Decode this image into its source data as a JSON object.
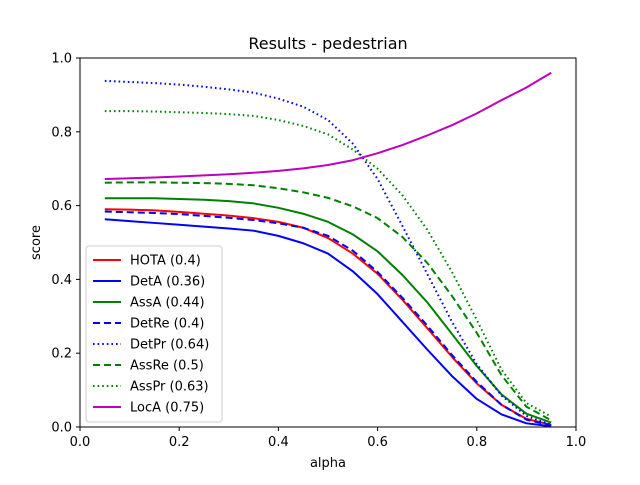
{
  "chart_data": {
    "type": "line",
    "title": "Results - pedestrian",
    "xlabel": "alpha",
    "ylabel": "score",
    "xlim": [
      0.0,
      1.0
    ],
    "ylim": [
      0.0,
      1.0
    ],
    "xticks": [
      "0.0",
      "0.2",
      "0.4",
      "0.6",
      "0.8",
      "1.0"
    ],
    "yticks": [
      "0.0",
      "0.2",
      "0.4",
      "0.6",
      "0.8",
      "1.0"
    ],
    "grid": false,
    "legend_position": "lower-left",
    "x": [
      0.05,
      0.1,
      0.15,
      0.2,
      0.25,
      0.3,
      0.35,
      0.4,
      0.45,
      0.5,
      0.55,
      0.6,
      0.65,
      0.7,
      0.75,
      0.8,
      0.85,
      0.9,
      0.95
    ],
    "series": [
      {
        "name": "HOTA (0.4)",
        "color": "#ff0000",
        "dash": "solid",
        "values": [
          0.59,
          0.589,
          0.587,
          0.583,
          0.578,
          0.573,
          0.566,
          0.556,
          0.54,
          0.512,
          0.47,
          0.415,
          0.345,
          0.268,
          0.19,
          0.118,
          0.06,
          0.022,
          0.006
        ]
      },
      {
        "name": "DetA (0.36)",
        "color": "#0000ff",
        "dash": "solid",
        "values": [
          0.563,
          0.558,
          0.553,
          0.548,
          0.543,
          0.538,
          0.532,
          0.518,
          0.498,
          0.47,
          0.422,
          0.36,
          0.285,
          0.21,
          0.138,
          0.076,
          0.034,
          0.01,
          0.002
        ]
      },
      {
        "name": "AssA (0.44)",
        "color": "#008000",
        "dash": "solid",
        "values": [
          0.62,
          0.62,
          0.62,
          0.618,
          0.616,
          0.612,
          0.606,
          0.594,
          0.578,
          0.556,
          0.522,
          0.476,
          0.412,
          0.338,
          0.252,
          0.165,
          0.088,
          0.036,
          0.012
        ]
      },
      {
        "name": "DetRe (0.4)",
        "color": "#0000ff",
        "dash": "dashed",
        "values": [
          0.584,
          0.582,
          0.58,
          0.577,
          0.572,
          0.567,
          0.561,
          0.552,
          0.54,
          0.518,
          0.478,
          0.42,
          0.35,
          0.275,
          0.195,
          0.122,
          0.06,
          0.02,
          0.004
        ]
      },
      {
        "name": "DetPr (0.64)",
        "color": "#0000ff",
        "dash": "dotted",
        "values": [
          0.938,
          0.935,
          0.932,
          0.928,
          0.922,
          0.915,
          0.906,
          0.89,
          0.868,
          0.832,
          0.768,
          0.672,
          0.545,
          0.415,
          0.285,
          0.17,
          0.085,
          0.03,
          0.006
        ]
      },
      {
        "name": "AssRe (0.5)",
        "color": "#008000",
        "dash": "dashed",
        "values": [
          0.662,
          0.663,
          0.663,
          0.662,
          0.661,
          0.659,
          0.655,
          0.647,
          0.636,
          0.621,
          0.598,
          0.566,
          0.515,
          0.445,
          0.355,
          0.255,
          0.14,
          0.055,
          0.018
        ]
      },
      {
        "name": "AssPr (0.63)",
        "color": "#008000",
        "dash": "dotted",
        "values": [
          0.856,
          0.856,
          0.855,
          0.853,
          0.851,
          0.848,
          0.843,
          0.832,
          0.816,
          0.793,
          0.752,
          0.7,
          0.628,
          0.535,
          0.42,
          0.29,
          0.155,
          0.065,
          0.028
        ]
      },
      {
        "name": "LocA (0.75)",
        "color": "#bf00bf",
        "dash": "solid",
        "values": [
          0.672,
          0.674,
          0.676,
          0.679,
          0.682,
          0.685,
          0.689,
          0.694,
          0.701,
          0.71,
          0.723,
          0.742,
          0.764,
          0.79,
          0.818,
          0.85,
          0.886,
          0.92,
          0.96
        ]
      }
    ]
  }
}
